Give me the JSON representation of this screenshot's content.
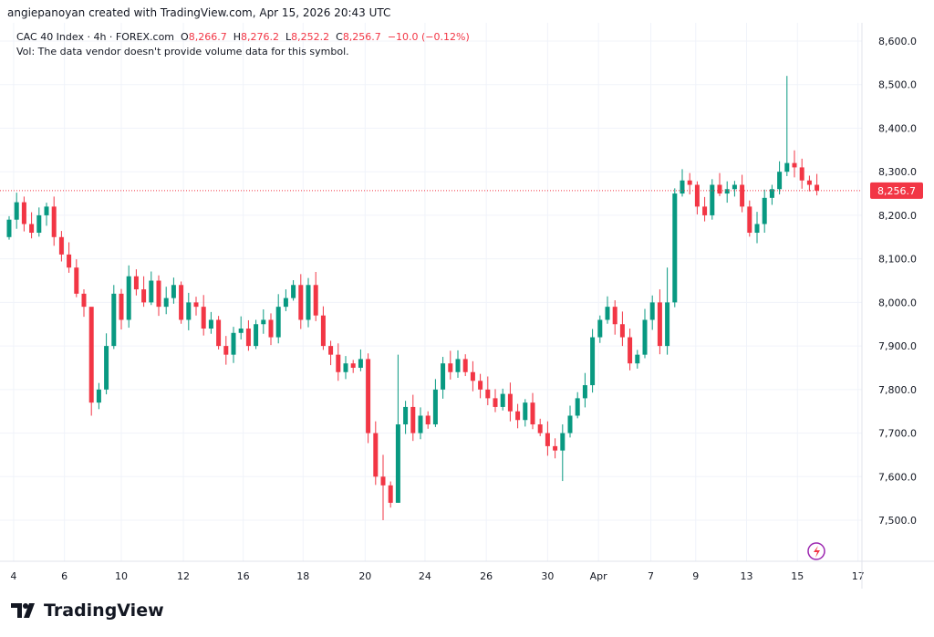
{
  "credit": "angiepanoyan created with TradingView.com, Apr 15, 2026 20:43 UTC",
  "legend": {
    "symbol": "CAC 40 Index · 4h · FOREX.com",
    "o_label": "O",
    "o": "8,266.7",
    "h_label": "H",
    "h": "8,276.2",
    "l_label": "L",
    "l": "8,252.2",
    "c_label": "C",
    "c": "8,256.7",
    "change": "−10.0 (−0.12%)",
    "vol": "Vol: The data vendor doesn't provide volume data for this symbol."
  },
  "logo": "TradingView",
  "colors": {
    "up": "#089981",
    "down": "#f23645",
    "grid": "#f0f3fa"
  },
  "chart_data": {
    "type": "candlestick",
    "title": "CAC 40 Index · 4h · FOREX.com",
    "ylim": [
      7420,
      8640
    ],
    "y_ticks": [
      "8,600.0",
      "8,500.0",
      "8,400.0",
      "8,300.0",
      "8,200.0",
      "8,100.0",
      "8,000.0",
      "7,900.0",
      "7,800.0",
      "7,700.0",
      "7,600.0",
      "7,500.0"
    ],
    "y_tick_values": [
      8600,
      8500,
      8400,
      8300,
      8200,
      8100,
      8000,
      7900,
      7800,
      7700,
      7600,
      7500
    ],
    "x_ticks": [
      "4",
      "6",
      "10",
      "12",
      "16",
      "18",
      "20",
      "24",
      "26",
      "30",
      "Apr",
      "7",
      "9",
      "13",
      "15",
      "17"
    ],
    "x_tick_index": [
      0.6,
      7.4,
      15,
      23.3,
      31.3,
      39.3,
      47.6,
      55.6,
      63.8,
      72,
      78.8,
      85.8,
      91.8,
      98.6,
      105.4,
      113.5
    ],
    "last_price": "8,256.7",
    "last_value": 8256.7,
    "first_open": 8150,
    "closes": [
      8190,
      8230,
      8180,
      8160,
      8200,
      8220,
      8150,
      8110,
      8080,
      8020,
      7990,
      7770,
      7800,
      7900,
      8020,
      7960,
      8060,
      8030,
      8000,
      8050,
      7990,
      8010,
      8040,
      7960,
      8000,
      7990,
      7940,
      7960,
      7900,
      7880,
      7930,
      7940,
      7900,
      7950,
      7960,
      7920,
      7990,
      8010,
      8040,
      7960,
      8040,
      7970,
      7900,
      7880,
      7840,
      7860,
      7850,
      7870,
      7700,
      7600,
      7580,
      7540,
      7720,
      7760,
      7700,
      7740,
      7720,
      7800,
      7860,
      7840,
      7870,
      7840,
      7820,
      7800,
      7780,
      7760,
      7790,
      7750,
      7730,
      7770,
      7720,
      7700,
      7670,
      7660,
      7700,
      7740,
      7780,
      7810,
      7920,
      7960,
      7990,
      7950,
      7920,
      7860,
      7880,
      7960,
      8000,
      7900,
      8000,
      8250,
      8280,
      8270,
      8220,
      8200,
      8270,
      8250,
      8260,
      8270,
      8220,
      8160,
      8180,
      8240,
      8260,
      8300,
      8320,
      8310,
      8280,
      8270,
      8256.7
    ],
    "wick_overrides": {
      "11": [
        7780,
        7740
      ],
      "50": [
        7650,
        7500
      ],
      "52": [
        7880,
        7540
      ],
      "88": [
        8080,
        7880
      ],
      "104": [
        8520,
        8290
      ],
      "74": [
        7720,
        7590
      ]
    }
  }
}
